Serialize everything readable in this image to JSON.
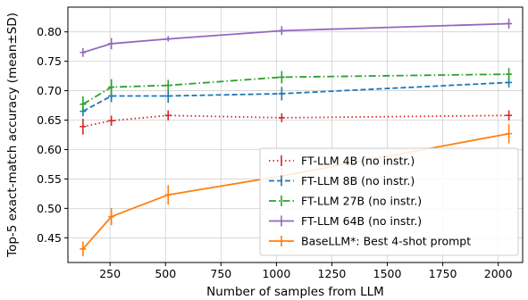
{
  "chart_data": {
    "type": "line",
    "xlabel": "Number of samples from LLM",
    "ylabel": "Top-5 exact-match accuracy (mean±SD)",
    "xlim": [
      60,
      2110
    ],
    "ylim": [
      0.408,
      0.842
    ],
    "xticks": [
      250,
      500,
      750,
      1000,
      1250,
      1500,
      1750,
      2000
    ],
    "xtick_labels": [
      "250",
      "500",
      "750",
      "1000",
      "1250",
      "1500",
      "1750",
      "2000"
    ],
    "yticks": [
      0.45,
      0.5,
      0.55,
      0.6,
      0.65,
      0.7,
      0.75,
      0.8
    ],
    "ytick_labels": [
      "0.45",
      "0.50",
      "0.55",
      "0.60",
      "0.65",
      "0.70",
      "0.75",
      "0.80"
    ],
    "grid": true,
    "legend_position": "lower-right",
    "x": [
      128,
      256,
      512,
      1024,
      2048
    ],
    "series": [
      {
        "name": "FT-LLM 4B  (no instr.)",
        "color": "#d62728",
        "dash": "dotted",
        "values": [
          0.639,
          0.649,
          0.658,
          0.654,
          0.658
        ],
        "sd": [
          0.009,
          0.004,
          0.004,
          0.003,
          0.004
        ]
      },
      {
        "name": "FT-LLM 8B  (no instr.)",
        "color": "#1f77b4",
        "dash": "dashed",
        "values": [
          0.665,
          0.691,
          0.691,
          0.695,
          0.714
        ],
        "sd": [
          0.004,
          0.006,
          0.007,
          0.007,
          0.004
        ]
      },
      {
        "name": "FT-LLM 27B (no instr.)",
        "color": "#2ca02c",
        "dash": "dashdot",
        "values": [
          0.677,
          0.706,
          0.709,
          0.723,
          0.728
        ],
        "sd": [
          0.009,
          0.009,
          0.005,
          0.006,
          0.006
        ]
      },
      {
        "name": "FT-LLM 64B (no instr.)",
        "color": "#9467bd",
        "dash": "solid",
        "values": [
          0.765,
          0.78,
          0.788,
          0.802,
          0.814
        ],
        "sd": [
          0.003,
          0.005,
          0.0,
          0.003,
          0.004
        ]
      },
      {
        "name": "BaseLLM*: Best 4-shot prompt",
        "color": "#ff7f0e",
        "dash": "solid",
        "values": [
          0.431,
          0.486,
          0.523,
          0.555,
          0.627
        ],
        "sd": [
          0.008,
          0.01,
          0.012,
          0.01,
          0.012
        ]
      }
    ]
  }
}
